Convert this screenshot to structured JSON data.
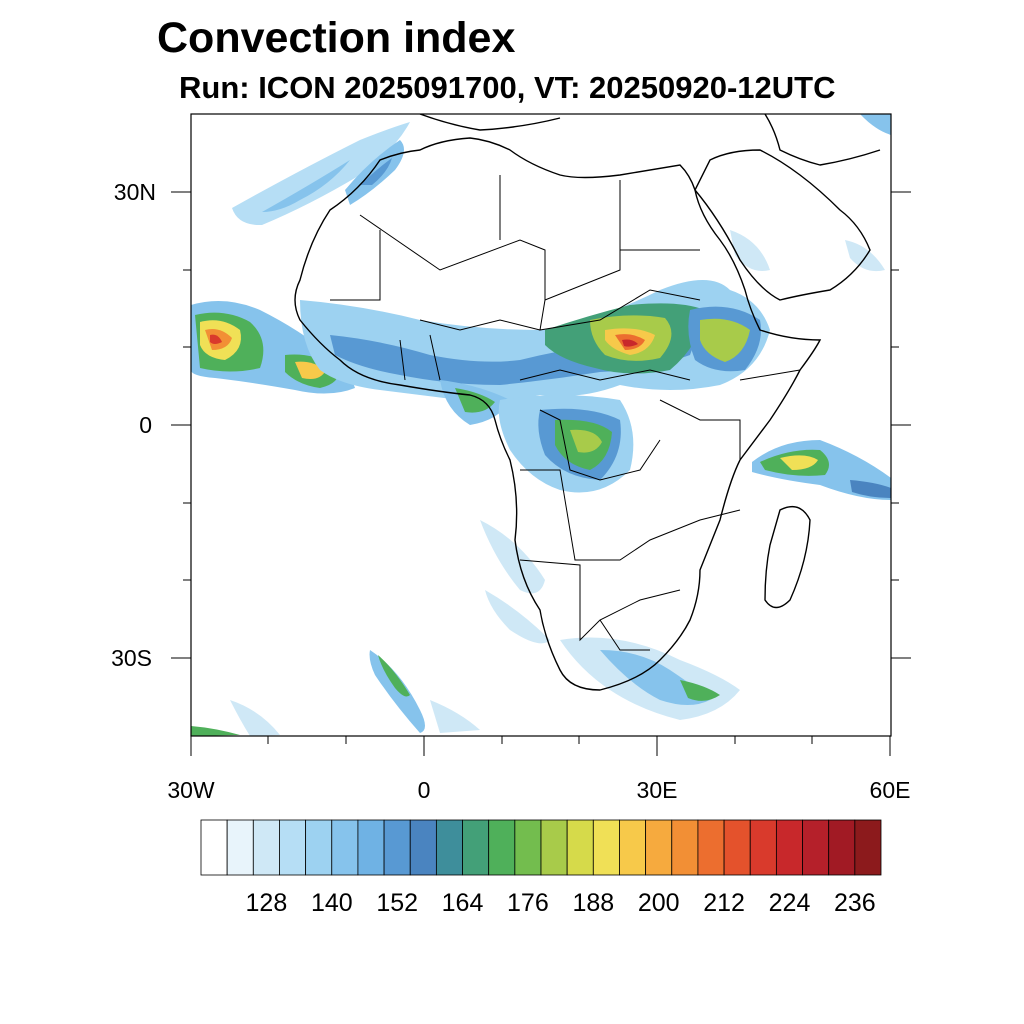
{
  "title": "Convection index",
  "subtitle": "Run: ICON 2025091700,  VT: 20250920-12UTC",
  "map": {
    "region": "Africa",
    "lon_range": [
      -30,
      60
    ],
    "lat_range": [
      -40,
      40
    ],
    "lon_labels": [
      "30W",
      "0",
      "30E",
      "60E"
    ],
    "lat_labels": [
      "30N",
      "0",
      "30S"
    ]
  },
  "colorbar": {
    "labels": [
      "128",
      "140",
      "152",
      "164",
      "176",
      "188",
      "200",
      "212",
      "224",
      "236"
    ],
    "colors": [
      "#ffffff",
      "#e8f4fb",
      "#cfe8f6",
      "#b6def5",
      "#9dd2f1",
      "#86c3ec",
      "#6fb2e4",
      "#5899d3",
      "#4a84c0",
      "#3e8e9b",
      "#43a078",
      "#4fb05a",
      "#73bd4e",
      "#a8cb4a",
      "#d6da4a",
      "#f0e056",
      "#f7c94a",
      "#f6aa3e",
      "#f28f35",
      "#ec6e2f",
      "#e4522c",
      "#d93a2c",
      "#c8282b",
      "#b5202a",
      "#a11a24",
      "#8c1a1c"
    ]
  }
}
